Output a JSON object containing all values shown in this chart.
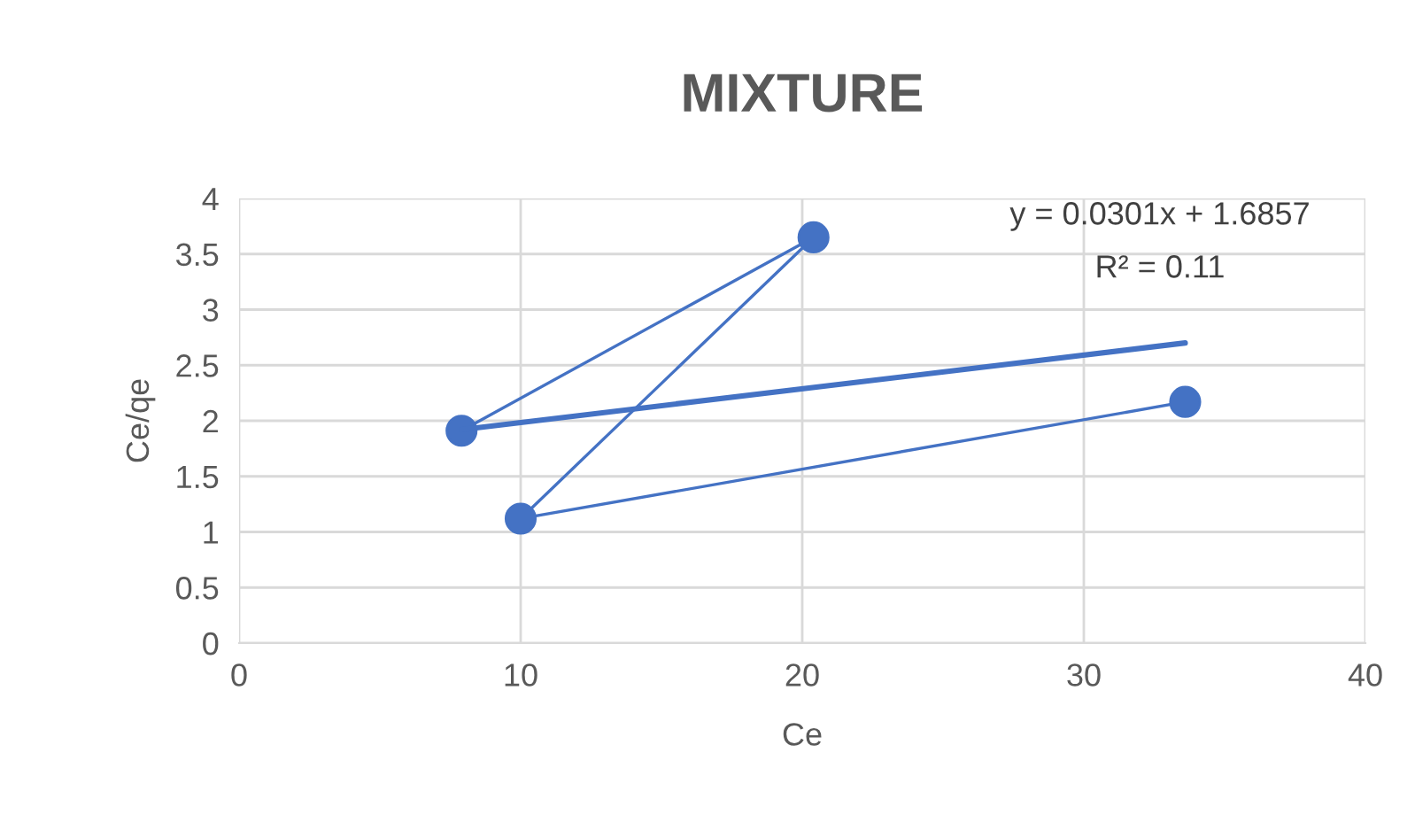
{
  "chart_data": {
    "type": "line",
    "title": "MIXTURE",
    "xlabel": "Ce",
    "ylabel": "Ce/qe",
    "xlim": [
      0,
      40
    ],
    "xticks": [
      0,
      10,
      20,
      30,
      40
    ],
    "ylim": [
      0,
      4
    ],
    "yticks": [
      0,
      0.5,
      1,
      1.5,
      2,
      2.5,
      3,
      3.5,
      4
    ],
    "grid": true,
    "series": [
      {
        "color": "#4472c4",
        "x": [
          7.9,
          20.4,
          10,
          33.6
        ],
        "values": [
          1.91,
          3.65,
          1.12,
          2.17
        ],
        "marker": "circle",
        "line_style": "solid"
      },
      {
        "type": "line",
        "color": "#4472c4",
        "x": [
          7.9,
          33.6
        ],
        "values": [
          1.92,
          2.7
        ],
        "marker": "none",
        "line_style": "solid"
      }
    ],
    "annotations": [
      "y = 0.0301x + 1.6857",
      "R² = 0.11"
    ]
  }
}
